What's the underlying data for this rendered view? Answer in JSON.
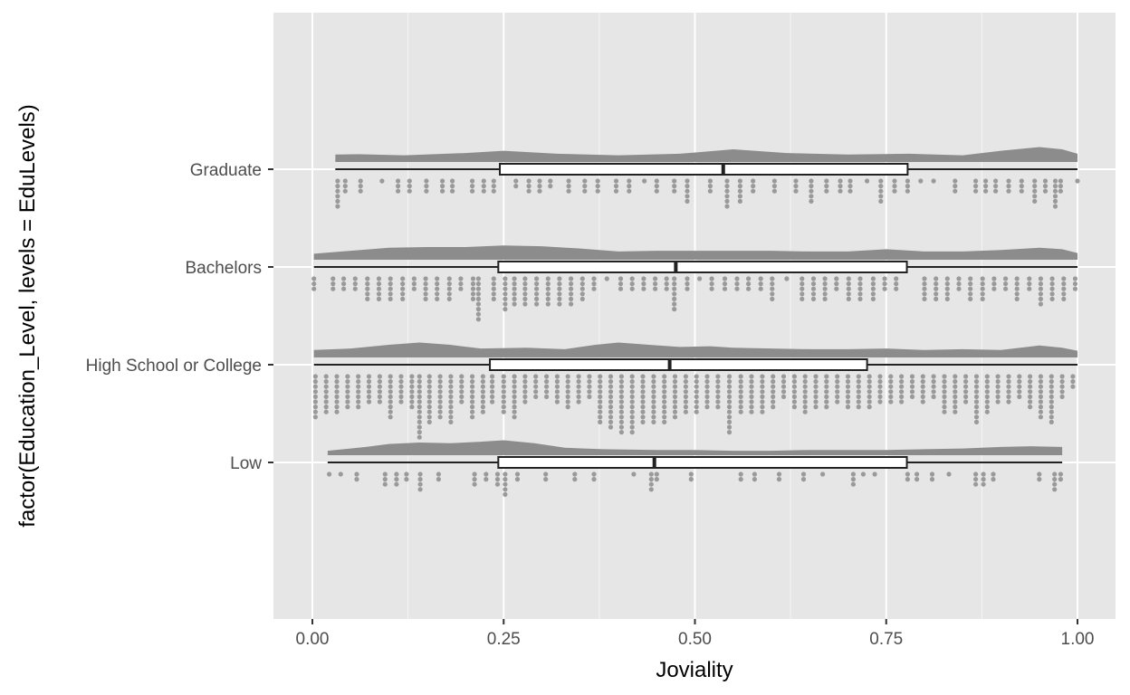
{
  "chart_data": {
    "type": "raincloud",
    "title": "",
    "xlabel": "Joviality",
    "ylabel": "factor(Education_Level, levels = EduLevels)",
    "xlim": [
      -0.05,
      1.05
    ],
    "x_ticks": [
      {
        "value": 0.0,
        "label": "0.00"
      },
      {
        "value": 0.25,
        "label": "0.25"
      },
      {
        "value": 0.5,
        "label": "0.50"
      },
      {
        "value": 0.75,
        "label": "0.75"
      },
      {
        "value": 1.0,
        "label": "1.00"
      }
    ],
    "grid": true,
    "legend": "none",
    "colors": {
      "panel": "#e6e6e6",
      "grid": "#ffffff",
      "density": "#8c8c8c",
      "dots": "#9a9a9a",
      "box_fill": "#ffffff",
      "box_stroke": "#222222",
      "tick_text": "#4d4d4d"
    },
    "series": [
      {
        "name": "Graduate",
        "box": {
          "min": 0.03,
          "q1": 0.245,
          "median": 0.537,
          "q3": 0.778,
          "max": 1.0
        },
        "density": [
          [
            0.03,
            0.5
          ],
          [
            0.06,
            0.52
          ],
          [
            0.12,
            0.45
          ],
          [
            0.2,
            0.6
          ],
          [
            0.25,
            0.75
          ],
          [
            0.32,
            0.55
          ],
          [
            0.4,
            0.45
          ],
          [
            0.48,
            0.55
          ],
          [
            0.55,
            0.85
          ],
          [
            0.62,
            0.6
          ],
          [
            0.7,
            0.5
          ],
          [
            0.78,
            0.55
          ],
          [
            0.85,
            0.45
          ],
          [
            0.9,
            0.75
          ],
          [
            0.95,
            1.0
          ],
          [
            0.98,
            0.85
          ],
          [
            1.0,
            0.55
          ]
        ],
        "dots": [
          [
            0.033,
            6
          ],
          [
            0.043,
            3
          ],
          [
            0.063,
            3
          ],
          [
            0.091,
            1
          ],
          [
            0.112,
            3
          ],
          [
            0.127,
            3
          ],
          [
            0.149,
            3
          ],
          [
            0.17,
            3
          ],
          [
            0.183,
            3
          ],
          [
            0.209,
            3
          ],
          [
            0.224,
            3
          ],
          [
            0.237,
            3
          ],
          [
            0.266,
            2
          ],
          [
            0.283,
            3
          ],
          [
            0.297,
            3
          ],
          [
            0.311,
            2
          ],
          [
            0.335,
            3
          ],
          [
            0.356,
            3
          ],
          [
            0.373,
            3
          ],
          [
            0.397,
            3
          ],
          [
            0.414,
            3
          ],
          [
            0.434,
            1
          ],
          [
            0.45,
            3
          ],
          [
            0.473,
            3
          ],
          [
            0.49,
            5
          ],
          [
            0.52,
            3
          ],
          [
            0.542,
            6
          ],
          [
            0.559,
            5
          ],
          [
            0.576,
            3
          ],
          [
            0.604,
            3
          ],
          [
            0.632,
            3
          ],
          [
            0.652,
            5
          ],
          [
            0.672,
            3
          ],
          [
            0.69,
            3
          ],
          [
            0.703,
            3
          ],
          [
            0.725,
            1
          ],
          [
            0.743,
            5
          ],
          [
            0.761,
            3
          ],
          [
            0.778,
            3
          ],
          [
            0.795,
            1
          ],
          [
            0.812,
            1
          ],
          [
            0.84,
            3
          ],
          [
            0.867,
            3
          ],
          [
            0.88,
            3
          ],
          [
            0.893,
            3
          ],
          [
            0.91,
            3
          ],
          [
            0.927,
            3
          ],
          [
            0.944,
            5
          ],
          [
            0.958,
            3
          ],
          [
            0.971,
            6
          ],
          [
            0.978,
            3
          ],
          [
            1.0,
            1
          ]
        ]
      },
      {
        "name": "Bachelors",
        "box": {
          "min": 0.002,
          "q1": 0.243,
          "median": 0.475,
          "q3": 0.777,
          "max": 1.0
        },
        "density": [
          [
            0.002,
            0.4
          ],
          [
            0.05,
            0.6
          ],
          [
            0.1,
            0.8
          ],
          [
            0.15,
            0.85
          ],
          [
            0.2,
            0.85
          ],
          [
            0.25,
            0.95
          ],
          [
            0.3,
            0.9
          ],
          [
            0.35,
            0.75
          ],
          [
            0.4,
            0.55
          ],
          [
            0.45,
            0.6
          ],
          [
            0.5,
            0.6
          ],
          [
            0.55,
            0.6
          ],
          [
            0.6,
            0.6
          ],
          [
            0.65,
            0.55
          ],
          [
            0.7,
            0.55
          ],
          [
            0.75,
            0.7
          ],
          [
            0.8,
            0.55
          ],
          [
            0.85,
            0.55
          ],
          [
            0.9,
            0.65
          ],
          [
            0.95,
            0.8
          ],
          [
            0.98,
            0.7
          ],
          [
            1.0,
            0.45
          ]
        ],
        "dots": [
          [
            0.002,
            3
          ],
          [
            0.027,
            3
          ],
          [
            0.041,
            3
          ],
          [
            0.056,
            3
          ],
          [
            0.072,
            5
          ],
          [
            0.087,
            5
          ],
          [
            0.102,
            5
          ],
          [
            0.118,
            5
          ],
          [
            0.133,
            3
          ],
          [
            0.148,
            5
          ],
          [
            0.163,
            5
          ],
          [
            0.179,
            5
          ],
          [
            0.194,
            3
          ],
          [
            0.21,
            5
          ],
          [
            0.217,
            9
          ],
          [
            0.237,
            5
          ],
          [
            0.252,
            7
          ],
          [
            0.264,
            6
          ],
          [
            0.278,
            6
          ],
          [
            0.293,
            6
          ],
          [
            0.308,
            6
          ],
          [
            0.323,
            6
          ],
          [
            0.338,
            6
          ],
          [
            0.353,
            5
          ],
          [
            0.368,
            3
          ],
          [
            0.385,
            1
          ],
          [
            0.403,
            3
          ],
          [
            0.418,
            3
          ],
          [
            0.433,
            3
          ],
          [
            0.448,
            3
          ],
          [
            0.463,
            3
          ],
          [
            0.473,
            7
          ],
          [
            0.49,
            3
          ],
          [
            0.506,
            1
          ],
          [
            0.522,
            3
          ],
          [
            0.539,
            3
          ],
          [
            0.555,
            3
          ],
          [
            0.57,
            3
          ],
          [
            0.586,
            3
          ],
          [
            0.601,
            5
          ],
          [
            0.62,
            1
          ],
          [
            0.64,
            5
          ],
          [
            0.655,
            5
          ],
          [
            0.67,
            5
          ],
          [
            0.685,
            3
          ],
          [
            0.701,
            5
          ],
          [
            0.716,
            5
          ],
          [
            0.733,
            5
          ],
          [
            0.748,
            3
          ],
          [
            0.763,
            3
          ],
          [
            0.8,
            5
          ],
          [
            0.815,
            5
          ],
          [
            0.83,
            5
          ],
          [
            0.845,
            3
          ],
          [
            0.86,
            5
          ],
          [
            0.876,
            5
          ],
          [
            0.891,
            3
          ],
          [
            0.906,
            3
          ],
          [
            0.921,
            5
          ],
          [
            0.937,
            3
          ],
          [
            0.952,
            6
          ],
          [
            0.967,
            5
          ],
          [
            0.982,
            5
          ],
          [
            0.997,
            3
          ]
        ]
      },
      {
        "name": "High School or College",
        "box": {
          "min": 0.002,
          "q1": 0.232,
          "median": 0.467,
          "q3": 0.725,
          "max": 1.0
        },
        "density": [
          [
            0.002,
            0.5
          ],
          [
            0.05,
            0.6
          ],
          [
            0.1,
            0.85
          ],
          [
            0.14,
            1.0
          ],
          [
            0.18,
            0.85
          ],
          [
            0.22,
            0.6
          ],
          [
            0.28,
            0.65
          ],
          [
            0.33,
            0.55
          ],
          [
            0.37,
            0.85
          ],
          [
            0.4,
            1.0
          ],
          [
            0.44,
            0.85
          ],
          [
            0.48,
            0.7
          ],
          [
            0.52,
            0.75
          ],
          [
            0.55,
            0.65
          ],
          [
            0.6,
            0.6
          ],
          [
            0.65,
            0.55
          ],
          [
            0.7,
            0.55
          ],
          [
            0.75,
            0.6
          ],
          [
            0.8,
            0.5
          ],
          [
            0.85,
            0.55
          ],
          [
            0.9,
            0.5
          ],
          [
            0.95,
            0.8
          ],
          [
            0.98,
            0.65
          ],
          [
            1.0,
            0.45
          ]
        ],
        "dots": [
          [
            0.004,
            9
          ],
          [
            0.018,
            8
          ],
          [
            0.032,
            8
          ],
          [
            0.046,
            7
          ],
          [
            0.06,
            7
          ],
          [
            0.074,
            6
          ],
          [
            0.088,
            6
          ],
          [
            0.102,
            9
          ],
          [
            0.116,
            6
          ],
          [
            0.13,
            7
          ],
          [
            0.14,
            13
          ],
          [
            0.153,
            10
          ],
          [
            0.167,
            9
          ],
          [
            0.181,
            10
          ],
          [
            0.195,
            6
          ],
          [
            0.209,
            9
          ],
          [
            0.223,
            8
          ],
          [
            0.235,
            6
          ],
          [
            0.25,
            8
          ],
          [
            0.264,
            9
          ],
          [
            0.278,
            6
          ],
          [
            0.292,
            5
          ],
          [
            0.306,
            5
          ],
          [
            0.32,
            6
          ],
          [
            0.334,
            7
          ],
          [
            0.348,
            6
          ],
          [
            0.362,
            5
          ],
          [
            0.376,
            10
          ],
          [
            0.39,
            11
          ],
          [
            0.404,
            12
          ],
          [
            0.418,
            12
          ],
          [
            0.432,
            10
          ],
          [
            0.446,
            10
          ],
          [
            0.46,
            10
          ],
          [
            0.474,
            9
          ],
          [
            0.488,
            8
          ],
          [
            0.502,
            8
          ],
          [
            0.516,
            7
          ],
          [
            0.53,
            7
          ],
          [
            0.545,
            12
          ],
          [
            0.56,
            8
          ],
          [
            0.574,
            8
          ],
          [
            0.588,
            8
          ],
          [
            0.602,
            7
          ],
          [
            0.616,
            5
          ],
          [
            0.63,
            7
          ],
          [
            0.644,
            8
          ],
          [
            0.658,
            7
          ],
          [
            0.672,
            7
          ],
          [
            0.686,
            6
          ],
          [
            0.7,
            7
          ],
          [
            0.714,
            7
          ],
          [
            0.728,
            7
          ],
          [
            0.742,
            6
          ],
          [
            0.756,
            6
          ],
          [
            0.77,
            6
          ],
          [
            0.784,
            5
          ],
          [
            0.798,
            6
          ],
          [
            0.812,
            5
          ],
          [
            0.826,
            8
          ],
          [
            0.84,
            8
          ],
          [
            0.854,
            6
          ],
          [
            0.868,
            10
          ],
          [
            0.882,
            8
          ],
          [
            0.896,
            6
          ],
          [
            0.91,
            6
          ],
          [
            0.924,
            5
          ],
          [
            0.938,
            7
          ],
          [
            0.952,
            9
          ],
          [
            0.966,
            10
          ],
          [
            0.98,
            5
          ],
          [
            0.994,
            3
          ]
        ]
      },
      {
        "name": "Low",
        "box": {
          "min": 0.02,
          "q1": 0.243,
          "median": 0.447,
          "q3": 0.777,
          "max": 0.98
        },
        "density": [
          [
            0.02,
            0.3
          ],
          [
            0.07,
            0.55
          ],
          [
            0.1,
            0.75
          ],
          [
            0.14,
            0.85
          ],
          [
            0.18,
            0.8
          ],
          [
            0.22,
            0.9
          ],
          [
            0.25,
            1.0
          ],
          [
            0.29,
            0.8
          ],
          [
            0.33,
            0.5
          ],
          [
            0.38,
            0.4
          ],
          [
            0.45,
            0.35
          ],
          [
            0.5,
            0.35
          ],
          [
            0.55,
            0.3
          ],
          [
            0.6,
            0.3
          ],
          [
            0.65,
            0.35
          ],
          [
            0.7,
            0.35
          ],
          [
            0.75,
            0.35
          ],
          [
            0.8,
            0.4
          ],
          [
            0.85,
            0.45
          ],
          [
            0.9,
            0.55
          ],
          [
            0.94,
            0.6
          ],
          [
            0.98,
            0.55
          ]
        ],
        "dots": [
          [
            0.022,
            1
          ],
          [
            0.037,
            1
          ],
          [
            0.058,
            2
          ],
          [
            0.095,
            3
          ],
          [
            0.11,
            3
          ],
          [
            0.123,
            2
          ],
          [
            0.141,
            4
          ],
          [
            0.165,
            2
          ],
          [
            0.212,
            3
          ],
          [
            0.227,
            2
          ],
          [
            0.242,
            3
          ],
          [
            0.252,
            5
          ],
          [
            0.268,
            2
          ],
          [
            0.305,
            2
          ],
          [
            0.343,
            2
          ],
          [
            0.368,
            2
          ],
          [
            0.42,
            1
          ],
          [
            0.443,
            4
          ],
          [
            0.45,
            2
          ],
          [
            0.495,
            2
          ],
          [
            0.56,
            2
          ],
          [
            0.578,
            2
          ],
          [
            0.61,
            2
          ],
          [
            0.642,
            2
          ],
          [
            0.667,
            1
          ],
          [
            0.707,
            3
          ],
          [
            0.72,
            1
          ],
          [
            0.735,
            1
          ],
          [
            0.778,
            2
          ],
          [
            0.79,
            2
          ],
          [
            0.81,
            2
          ],
          [
            0.832,
            1
          ],
          [
            0.867,
            3
          ],
          [
            0.877,
            3
          ],
          [
            0.89,
            2
          ],
          [
            0.95,
            2
          ],
          [
            0.97,
            4
          ],
          [
            0.978,
            2
          ]
        ]
      }
    ]
  }
}
